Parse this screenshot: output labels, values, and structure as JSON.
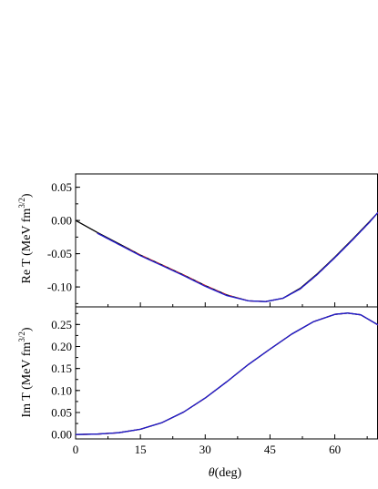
{
  "chart_data": [
    {
      "type": "line",
      "ylabel": "Re T (MeV fm",
      "ylabel_sup": "3/2",
      "ylabel_close": ")",
      "xlim": [
        0,
        70
      ],
      "ylim": [
        -0.13,
        0.07
      ],
      "yticks": [
        0.05,
        0.0,
        -0.05,
        -0.1
      ],
      "ytick_labels": [
        "0.05",
        "0.00",
        "-0.05",
        "-0.10"
      ],
      "xticks": [
        0,
        15,
        30,
        45,
        60
      ],
      "colors": {
        "black": "#000000",
        "red": "#d62020",
        "blue": "#1f1fd1"
      },
      "series": [
        {
          "x": [
            0,
            5,
            10,
            15,
            20,
            25,
            30,
            35,
            40,
            44,
            48,
            52,
            56,
            60,
            64,
            68,
            70
          ],
          "y": [
            0.0,
            -0.018,
            -0.035,
            -0.052,
            -0.067,
            -0.082,
            -0.098,
            -0.112,
            -0.121,
            -0.122,
            -0.117,
            -0.102,
            -0.08,
            -0.055,
            -0.029,
            -0.002,
            0.012
          ]
        },
        {
          "x": [
            5,
            10,
            15,
            20,
            25,
            30,
            35,
            40,
            44,
            48,
            52,
            56,
            60,
            64,
            68,
            70
          ],
          "y": [
            -0.019,
            -0.036,
            -0.052,
            -0.067,
            -0.082,
            -0.098,
            -0.112,
            -0.121,
            -0.122,
            -0.117,
            -0.103,
            -0.081,
            -0.056,
            -0.03,
            -0.003,
            0.012
          ]
        },
        {
          "x": [
            5,
            10,
            15,
            20,
            25,
            30,
            35,
            40,
            44,
            48,
            52,
            56,
            60,
            64,
            68,
            70
          ],
          "y": [
            -0.019,
            -0.036,
            -0.053,
            -0.068,
            -0.083,
            -0.099,
            -0.113,
            -0.121,
            -0.122,
            -0.117,
            -0.103,
            -0.081,
            -0.056,
            -0.03,
            -0.003,
            0.012
          ]
        }
      ]
    },
    {
      "type": "line",
      "ylabel": "Im T (MeV fm",
      "ylabel_sup": "3/2",
      "ylabel_close": ")",
      "xlabel": "θ",
      "xlabel_unit": "(deg)",
      "xlim": [
        0,
        70
      ],
      "ylim": [
        -0.01,
        0.29
      ],
      "yticks": [
        0.0,
        0.05,
        0.1,
        0.15,
        0.2,
        0.25
      ],
      "ytick_labels": [
        "0.00",
        "0.05",
        "0.10",
        "0.15",
        "0.20",
        "0.25"
      ],
      "xticks": [
        0,
        15,
        30,
        45,
        60
      ],
      "xtick_labels": [
        "0",
        "15",
        "30",
        "45",
        "60"
      ],
      "colors": {
        "black": "#000000",
        "red": "#d62020",
        "blue": "#1f1fd1"
      },
      "series": [
        {
          "x": [
            0,
            5,
            10,
            15,
            20,
            25,
            30,
            35,
            40,
            45,
            50,
            55,
            60,
            63,
            66,
            70
          ],
          "y": [
            0.0,
            0.001,
            0.004,
            0.012,
            0.027,
            0.051,
            0.083,
            0.12,
            0.159,
            0.194,
            0.228,
            0.256,
            0.273,
            0.276,
            0.272,
            0.249
          ]
        },
        {
          "x": [
            0,
            5,
            10,
            15,
            20,
            25,
            30,
            35,
            40,
            45,
            50,
            55,
            60,
            63,
            66,
            70
          ],
          "y": [
            0.0,
            0.001,
            0.004,
            0.012,
            0.027,
            0.051,
            0.083,
            0.12,
            0.159,
            0.194,
            0.228,
            0.256,
            0.273,
            0.276,
            0.272,
            0.249
          ]
        },
        {
          "x": [
            0,
            5,
            10,
            15,
            20,
            25,
            30,
            35,
            40,
            45,
            50,
            55,
            60,
            63,
            66,
            70
          ],
          "y": [
            0.0,
            0.001,
            0.004,
            0.012,
            0.027,
            0.051,
            0.083,
            0.12,
            0.159,
            0.194,
            0.228,
            0.256,
            0.273,
            0.276,
            0.272,
            0.249
          ]
        }
      ]
    }
  ]
}
